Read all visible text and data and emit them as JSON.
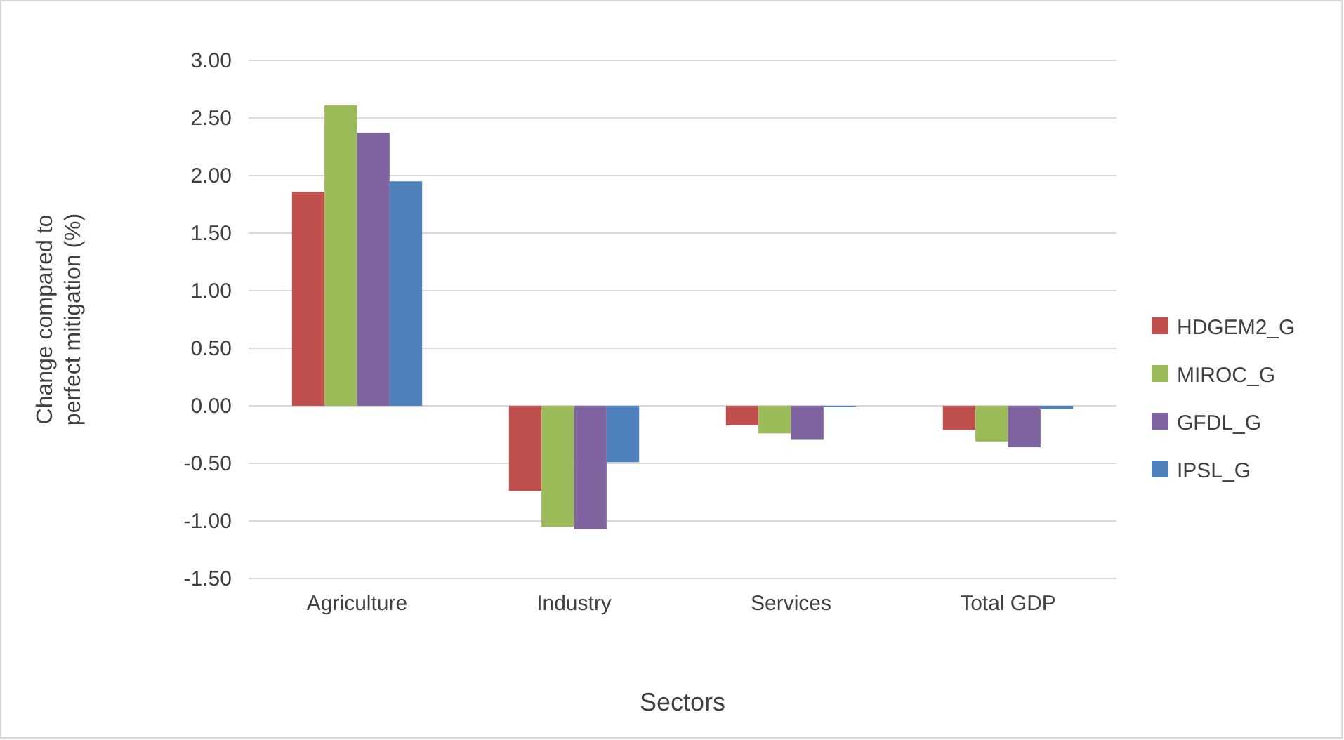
{
  "chart_data": {
    "type": "bar",
    "xlabel": "Sectors",
    "ylabel": "Change compared to perfect mitigation (%)",
    "categories": [
      "Agriculture",
      "Industry",
      "Services",
      "Total GDP"
    ],
    "series": [
      {
        "name": "HDGEM2_G",
        "color": "#c0504d",
        "values": [
          1.86,
          -0.74,
          -0.17,
          -0.21
        ]
      },
      {
        "name": "MIROC_G",
        "color": "#9bbb59",
        "values": [
          2.61,
          -1.05,
          -0.24,
          -0.31
        ]
      },
      {
        "name": "GFDL_G",
        "color": "#8064a2",
        "values": [
          2.37,
          -1.07,
          -0.29,
          -0.36
        ]
      },
      {
        "name": "IPSL_G",
        "color": "#4f81bd",
        "values": [
          1.95,
          -0.49,
          -0.01,
          -0.03
        ]
      }
    ],
    "ylim": [
      -1.5,
      3
    ],
    "yticks": [
      {
        "value": -1.5,
        "label": "-1.50"
      },
      {
        "value": -1,
        "label": "-1.00"
      },
      {
        "value": -0.5,
        "label": "-0.50"
      },
      {
        "value": 0,
        "label": "0.00"
      },
      {
        "value": 0.5,
        "label": "0.50"
      },
      {
        "value": 1,
        "label": "1.00"
      },
      {
        "value": 1.5,
        "label": "1.50"
      },
      {
        "value": 2,
        "label": "2.00"
      },
      {
        "value": 2.5,
        "label": "2.50"
      },
      {
        "value": 3,
        "label": "3.00"
      }
    ],
    "grid": "y",
    "legend": "right"
  }
}
